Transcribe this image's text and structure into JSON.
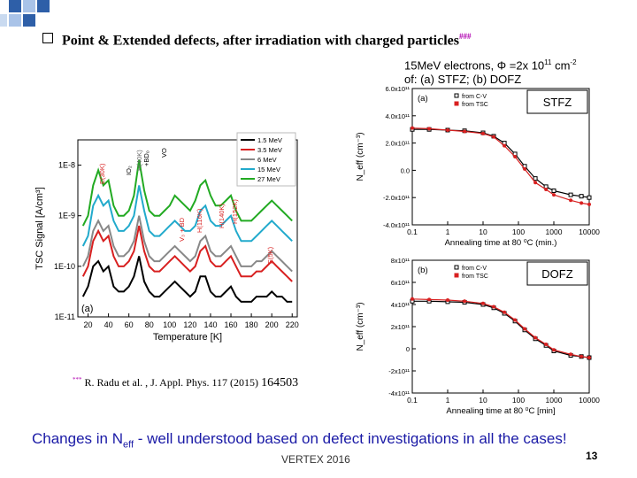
{
  "slide": {
    "bullet_text": "Point & Extended defects, after irradiation with charged particles",
    "bullet_sup": "###",
    "ref_sup": "***",
    "ref_text": "R. Radu et al. , J. Appl. Phys. 117 (2015)",
    "ref_num": "164503",
    "changes_pre": "Changes in N",
    "changes_sub": "eff",
    "changes_post": " - well understood based on defect investigations in all the cases!",
    "footer": "VERTEX 2016",
    "page": "13",
    "colors": {
      "accent": "#1a1aa6",
      "decor_blue": "#2e5fa8",
      "decor_light": "#a9c3e8"
    }
  },
  "right_title": {
    "line1a": "15MeV electrons, Φ =2x 10",
    "line1sup": "11",
    "line1b": " cm",
    "line1sup2": "-2",
    "line2": "of: (a) STFZ; (b) DOFZ"
  },
  "chart_data": [
    {
      "type": "line",
      "panel": "(a)",
      "title": "",
      "xlabel": "Temperature [K]",
      "ylabel": "TSC Signal [A/cm³]",
      "x_ticks": [
        "20",
        "40",
        "60",
        "80",
        "100",
        "120",
        "140",
        "160",
        "180",
        "200",
        "220"
      ],
      "y_ticks": [
        "1E-11",
        "1E-10",
        "1E-9",
        "1E-8"
      ],
      "xlim": [
        10,
        225
      ],
      "ylim_log10": [
        -11,
        -7.5
      ],
      "legend": [
        "1.5 MeV",
        "3.5 MeV",
        "6 MeV",
        "15 MeV",
        "27 MeV"
      ],
      "legend_colors": [
        "#000000",
        "#d82020",
        "#888888",
        "#22aacc",
        "#22aa22"
      ],
      "annotations": [
        "E(30K)",
        "IO₂",
        "H(40K)",
        "+BD₀",
        "VO",
        "H(116K)",
        "V₃ + BD",
        "H(140K)",
        "H(152K)",
        "E(5K)"
      ],
      "x": [
        15,
        20,
        25,
        30,
        35,
        40,
        45,
        50,
        55,
        60,
        65,
        70,
        75,
        80,
        85,
        90,
        95,
        100,
        105,
        110,
        115,
        120,
        125,
        130,
        135,
        140,
        145,
        150,
        155,
        160,
        165,
        170,
        175,
        180,
        185,
        190,
        195,
        200,
        205,
        210,
        215,
        220
      ],
      "series": [
        {
          "name": "1.5 MeV",
          "values": [
            -10.6,
            -10.4,
            -10.0,
            -9.9,
            -10.1,
            -10.0,
            -10.4,
            -10.5,
            -10.5,
            -10.4,
            -10.2,
            -9.8,
            -10.3,
            -10.5,
            -10.6,
            -10.6,
            -10.5,
            -10.4,
            -10.3,
            -10.4,
            -10.5,
            -10.6,
            -10.5,
            -10.2,
            -10.2,
            -10.5,
            -10.6,
            -10.6,
            -10.5,
            -10.4,
            -10.6,
            -10.7,
            -10.7,
            -10.7,
            -10.6,
            -10.6,
            -10.6,
            -10.5,
            -10.6,
            -10.6,
            -10.7,
            -10.7
          ]
        },
        {
          "name": "3.5 MeV",
          "values": [
            -10.2,
            -10.0,
            -9.5,
            -9.3,
            -9.5,
            -9.4,
            -9.8,
            -10.0,
            -10.0,
            -9.9,
            -9.7,
            -9.2,
            -9.7,
            -10.0,
            -10.1,
            -10.1,
            -10.0,
            -9.9,
            -9.8,
            -9.9,
            -10.0,
            -10.1,
            -10.0,
            -9.7,
            -9.6,
            -9.9,
            -10.0,
            -10.0,
            -9.9,
            -9.8,
            -10.0,
            -10.2,
            -10.2,
            -10.2,
            -10.1,
            -10.1,
            -10.0,
            -9.9,
            -10.0,
            -10.1,
            -10.2,
            -10.3
          ]
        },
        {
          "name": "6 MeV",
          "values": [
            -10.0,
            -9.8,
            -9.3,
            -9.1,
            -9.3,
            -9.2,
            -9.6,
            -9.8,
            -9.8,
            -9.7,
            -9.5,
            -9.0,
            -9.5,
            -9.8,
            -9.9,
            -9.9,
            -9.8,
            -9.7,
            -9.6,
            -9.7,
            -9.8,
            -9.9,
            -9.8,
            -9.5,
            -9.4,
            -9.7,
            -9.8,
            -9.8,
            -9.7,
            -9.6,
            -9.8,
            -10.0,
            -10.0,
            -10.0,
            -9.9,
            -9.9,
            -9.8,
            -9.7,
            -9.8,
            -9.9,
            -10.0,
            -10.1
          ]
        },
        {
          "name": "15 MeV",
          "values": [
            -9.6,
            -9.4,
            -8.8,
            -8.6,
            -8.8,
            -8.7,
            -9.1,
            -9.3,
            -9.3,
            -9.2,
            -9.0,
            -8.4,
            -8.9,
            -9.3,
            -9.4,
            -9.4,
            -9.3,
            -9.2,
            -9.1,
            -9.2,
            -9.3,
            -9.3,
            -9.2,
            -8.9,
            -8.8,
            -9.1,
            -9.2,
            -9.2,
            -9.1,
            -9.0,
            -9.3,
            -9.5,
            -9.5,
            -9.5,
            -9.4,
            -9.3,
            -9.2,
            -9.1,
            -9.2,
            -9.3,
            -9.4,
            -9.5
          ]
        },
        {
          "name": "27 MeV",
          "values": [
            -9.2,
            -9.0,
            -8.4,
            -8.1,
            -8.4,
            -8.3,
            -8.8,
            -9.0,
            -9.0,
            -8.9,
            -8.6,
            -7.9,
            -8.5,
            -8.9,
            -9.0,
            -9.0,
            -8.9,
            -8.8,
            -8.6,
            -8.7,
            -8.8,
            -8.9,
            -8.7,
            -8.4,
            -8.3,
            -8.6,
            -8.8,
            -8.8,
            -8.7,
            -8.6,
            -8.9,
            -9.1,
            -9.1,
            -9.1,
            -9.0,
            -8.9,
            -8.8,
            -8.7,
            -8.8,
            -8.9,
            -9.0,
            -9.1
          ]
        }
      ]
    },
    {
      "type": "line",
      "panel": "(a)",
      "label_box": "STFZ",
      "xlabel": "Annealing time at 80 ⁰C (min.)",
      "ylabel": "N_eff (cm⁻³)",
      "x_ticks": [
        "0.1",
        "1",
        "10",
        "100",
        "1000",
        "10000"
      ],
      "y_ticks": [
        "-4.0x10¹¹",
        "-2.0x10¹¹",
        "0.0",
        "2.0x10¹¹",
        "4.0x10¹¹",
        "6.0x10¹¹"
      ],
      "xlim_log10": [
        -1,
        4
      ],
      "ylim": [
        -400000000000.0,
        600000000000.0
      ],
      "legend": [
        "from C-V",
        "from TSC"
      ],
      "x": [
        0.1,
        0.3,
        1,
        3,
        10,
        20,
        40,
        80,
        150,
        300,
        600,
        1000,
        3000,
        6000,
        10000
      ],
      "series": [
        {
          "name": "from C-V",
          "values": [
            300000000000.0,
            300000000000.0,
            295000000000.0,
            290000000000.0,
            275000000000.0,
            250000000000.0,
            200000000000.0,
            120000000000.0,
            30000000000.0,
            -60000000000.0,
            -120000000000.0,
            -150000000000.0,
            -180000000000.0,
            -190000000000.0,
            -200000000000.0
          ]
        },
        {
          "name": "from TSC",
          "values": [
            310000000000.0,
            305000000000.0,
            295000000000.0,
            285000000000.0,
            270000000000.0,
            245000000000.0,
            180000000000.0,
            100000000000.0,
            10000000000.0,
            -90000000000.0,
            -140000000000.0,
            -180000000000.0,
            -220000000000.0,
            -240000000000.0,
            -250000000000.0
          ]
        }
      ]
    },
    {
      "type": "line",
      "panel": "(b)",
      "label_box": "DOFZ",
      "xlabel": "Annealing time at 80 ⁰C [min]",
      "ylabel": "N_eff (cm⁻³)",
      "x_ticks": [
        "0.1",
        "1",
        "10",
        "100",
        "1000",
        "10000"
      ],
      "y_ticks": [
        "-4x10¹¹",
        "-2x10¹¹",
        "0",
        "2x10¹¹",
        "4x10¹¹",
        "6x10¹¹",
        "8x10¹¹"
      ],
      "xlim_log10": [
        -1,
        4
      ],
      "ylim": [
        -400000000000.0,
        800000000000.0
      ],
      "legend": [
        "from C-V",
        "from TSC"
      ],
      "x": [
        0.1,
        0.3,
        1,
        3,
        10,
        20,
        40,
        80,
        150,
        300,
        600,
        1000,
        3000,
        6000,
        10000
      ],
      "series": [
        {
          "name": "from C-V",
          "values": [
            430000000000.0,
            430000000000.0,
            425000000000.0,
            420000000000.0,
            400000000000.0,
            370000000000.0,
            320000000000.0,
            250000000000.0,
            170000000000.0,
            90000000000.0,
            30000000000.0,
            -20000000000.0,
            -60000000000.0,
            -70000000000.0,
            -80000000000.0
          ]
        },
        {
          "name": "from TSC",
          "values": [
            450000000000.0,
            445000000000.0,
            440000000000.0,
            430000000000.0,
            410000000000.0,
            380000000000.0,
            330000000000.0,
            260000000000.0,
            180000000000.0,
            100000000000.0,
            40000000000.0,
            -10000000000.0,
            -50000000000.0,
            -70000000000.0,
            -80000000000.0
          ]
        }
      ]
    }
  ]
}
